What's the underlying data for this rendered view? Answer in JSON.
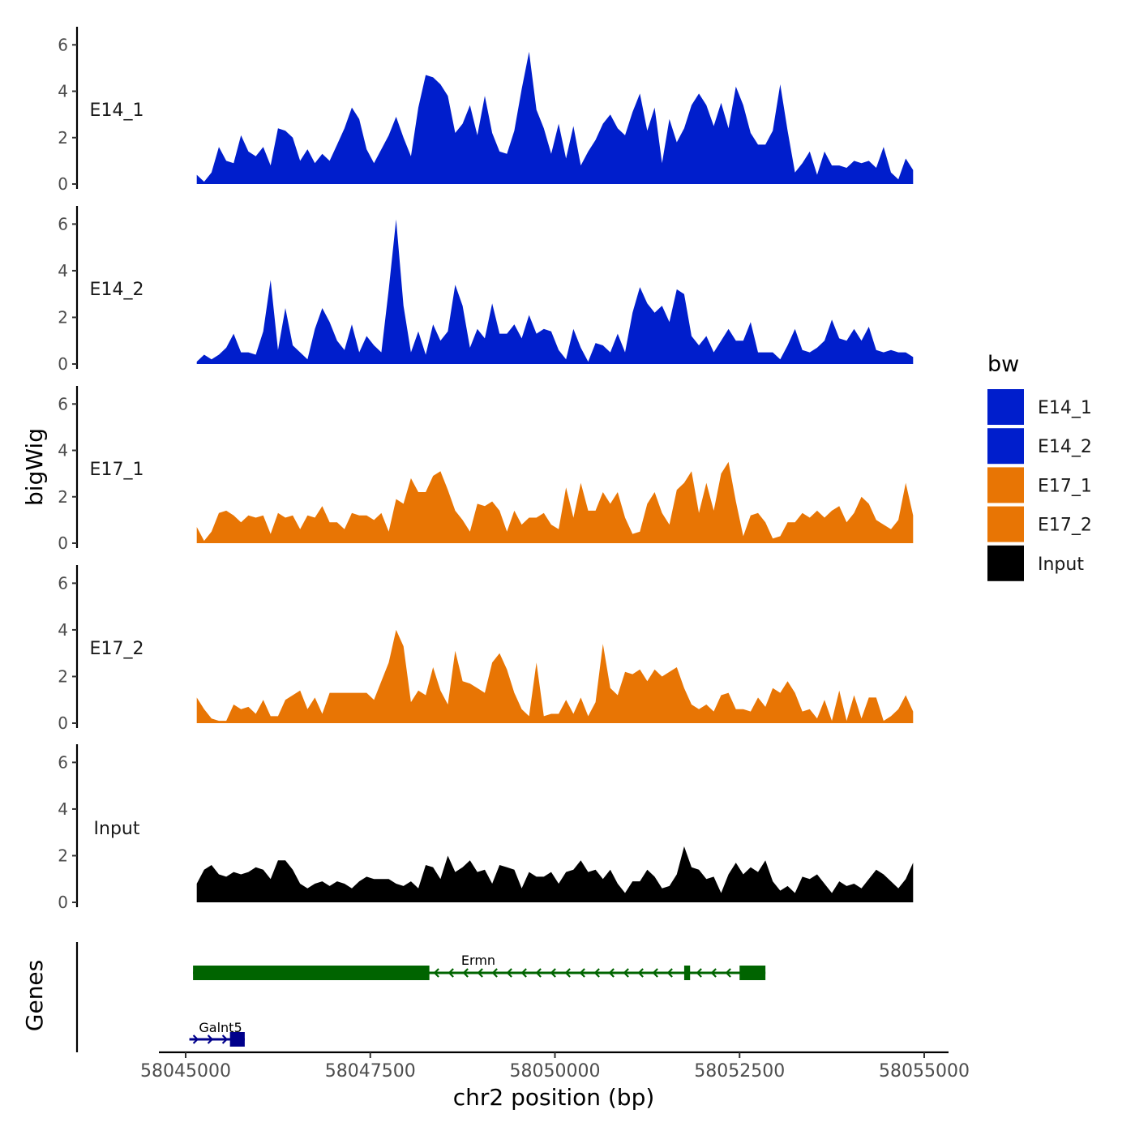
{
  "chart_data": {
    "type": "area",
    "xlabel": "chr2 position (bp)",
    "ylabel": "bigWig",
    "genes_label": "Genes",
    "xlim": [
      58044100,
      58055600
    ],
    "ylim": [
      0,
      6.5
    ],
    "x_ticks": [
      58045000,
      58047500,
      58050000,
      58052500,
      58055000
    ],
    "x_tick_labels": [
      "58045000",
      "58047500",
      "58050000",
      "58052500",
      "58055000"
    ],
    "y_ticks": [
      0,
      2,
      4,
      6
    ],
    "y_tick_labels": [
      "0",
      "2",
      "4",
      "6"
    ],
    "legend": {
      "title": "bw",
      "position": "right",
      "entries": [
        {
          "name": "E14_1",
          "color": "#001ECC"
        },
        {
          "name": "E14_2",
          "color": "#001ECC"
        },
        {
          "name": "E17_1",
          "color": "#E87504"
        },
        {
          "name": "E17_2",
          "color": "#E87504"
        },
        {
          "name": "Input",
          "color": "#000000"
        }
      ]
    },
    "x": [
      58045150,
      58045250,
      58045350,
      58045450,
      58045550,
      58045650,
      58045750,
      58045850,
      58045950,
      58046050,
      58046150,
      58046250,
      58046350,
      58046450,
      58046550,
      58046650,
      58046750,
      58046850,
      58046950,
      58047050,
      58047150,
      58047250,
      58047350,
      58047450,
      58047550,
      58047650,
      58047750,
      58047850,
      58047950,
      58048050,
      58048150,
      58048250,
      58048350,
      58048450,
      58048550,
      58048650,
      58048750,
      58048850,
      58048950,
      58049050,
      58049150,
      58049250,
      58049350,
      58049450,
      58049550,
      58049650,
      58049750,
      58049850,
      58049950,
      58050050,
      58050150,
      58050250,
      58050350,
      58050450,
      58050550,
      58050650,
      58050750,
      58050850,
      58050950,
      58051050,
      58051150,
      58051250,
      58051350,
      58051450,
      58051550,
      58051650,
      58051750,
      58051850,
      58051950,
      58052050,
      58052150,
      58052250,
      58052350,
      58052450,
      58052550,
      58052650,
      58052750,
      58052850,
      58052950,
      58053050,
      58053150,
      58053250,
      58053350,
      58053450,
      58053550,
      58053650,
      58053750,
      58053850,
      58053950,
      58054050,
      58054150,
      58054250,
      58054350,
      58054450,
      58054550,
      58054650,
      58054750,
      58054850
    ],
    "series": [
      {
        "name": "E14_1",
        "color": "#001ECC",
        "values": [
          0.4,
          0.1,
          0.5,
          1.6,
          1.0,
          0.9,
          2.1,
          1.4,
          1.2,
          1.6,
          0.8,
          2.4,
          2.3,
          2.0,
          1.0,
          1.5,
          0.9,
          1.3,
          1.0,
          1.7,
          2.4,
          3.3,
          2.8,
          1.5,
          0.9,
          1.5,
          2.1,
          2.9,
          2.0,
          1.2,
          3.3,
          4.7,
          4.6,
          4.3,
          3.8,
          2.2,
          2.6,
          3.4,
          2.1,
          3.8,
          2.2,
          1.4,
          1.3,
          2.3,
          4.1,
          5.7,
          3.2,
          2.4,
          1.3,
          2.6,
          1.1,
          2.5,
          0.8,
          1.4,
          1.9,
          2.6,
          3.0,
          2.4,
          2.1,
          3.1,
          3.9,
          2.3,
          3.3,
          0.9,
          2.8,
          1.8,
          2.4,
          3.4,
          3.9,
          3.4,
          2.5,
          3.5,
          2.4,
          4.2,
          3.4,
          2.2,
          1.7,
          1.7,
          2.3,
          4.3,
          2.3,
          0.5,
          0.9,
          1.4,
          0.4,
          1.4,
          0.8,
          0.8,
          0.7,
          1.0,
          0.9,
          1.0,
          0.7,
          1.6,
          0.5,
          0.2,
          1.1,
          0.6
        ]
      },
      {
        "name": "E14_2",
        "color": "#001ECC",
        "values": [
          0.1,
          0.4,
          0.2,
          0.4,
          0.7,
          1.3,
          0.5,
          0.5,
          0.4,
          1.4,
          3.6,
          0.6,
          2.4,
          0.8,
          0.5,
          0.2,
          1.5,
          2.4,
          1.8,
          1.0,
          0.6,
          1.7,
          0.5,
          1.2,
          0.8,
          0.5,
          3.2,
          6.2,
          2.5,
          0.5,
          1.4,
          0.4,
          1.7,
          1.0,
          1.4,
          3.4,
          2.5,
          0.7,
          1.5,
          1.1,
          2.6,
          1.3,
          1.3,
          1.7,
          1.1,
          2.1,
          1.3,
          1.5,
          1.4,
          0.6,
          0.2,
          1.5,
          0.7,
          0.1,
          0.9,
          0.8,
          0.5,
          1.3,
          0.5,
          2.2,
          3.3,
          2.6,
          2.2,
          2.5,
          1.8,
          3.2,
          3.0,
          1.2,
          0.8,
          1.2,
          0.5,
          1.0,
          1.5,
          1.0,
          1.0,
          1.8,
          0.5,
          0.5,
          0.5,
          0.2,
          0.8,
          1.5,
          0.6,
          0.5,
          0.7,
          1.0,
          1.9,
          1.1,
          1.0,
          1.5,
          1.0,
          1.6,
          0.6,
          0.5,
          0.6,
          0.5,
          0.5,
          0.3
        ]
      },
      {
        "name": "E17_1",
        "color": "#E87504",
        "values": [
          0.7,
          0.1,
          0.5,
          1.3,
          1.4,
          1.2,
          0.9,
          1.2,
          1.1,
          1.2,
          0.4,
          1.3,
          1.1,
          1.2,
          0.6,
          1.2,
          1.1,
          1.6,
          0.9,
          0.9,
          0.6,
          1.3,
          1.2,
          1.2,
          1.0,
          1.3,
          0.5,
          1.9,
          1.7,
          2.8,
          2.2,
          2.2,
          2.9,
          3.1,
          2.3,
          1.4,
          1.0,
          0.5,
          1.7,
          1.6,
          1.8,
          1.4,
          0.5,
          1.4,
          0.8,
          1.1,
          1.1,
          1.3,
          0.8,
          0.6,
          2.4,
          1.1,
          2.6,
          1.4,
          1.4,
          2.2,
          1.7,
          2.2,
          1.1,
          0.4,
          0.5,
          1.7,
          2.2,
          1.3,
          0.8,
          2.3,
          2.6,
          3.1,
          1.3,
          2.6,
          1.4,
          3.0,
          3.5,
          1.8,
          0.3,
          1.2,
          1.3,
          0.9,
          0.2,
          0.3,
          0.9,
          0.9,
          1.3,
          1.1,
          1.4,
          1.1,
          1.4,
          1.6,
          0.9,
          1.3,
          2.0,
          1.7,
          1.0,
          0.8,
          0.6,
          1.0,
          2.6,
          1.2
        ]
      },
      {
        "name": "E17_2",
        "color": "#E87504",
        "values": [
          1.1,
          0.6,
          0.2,
          0.1,
          0.1,
          0.8,
          0.6,
          0.7,
          0.4,
          1.0,
          0.3,
          0.3,
          1.0,
          1.2,
          1.4,
          0.6,
          1.1,
          0.4,
          1.3,
          1.3,
          1.3,
          1.3,
          1.3,
          1.3,
          1.0,
          1.8,
          2.6,
          4.0,
          3.3,
          0.9,
          1.4,
          1.2,
          2.4,
          1.4,
          0.8,
          3.1,
          1.8,
          1.7,
          1.5,
          1.3,
          2.6,
          3.0,
          2.3,
          1.3,
          0.6,
          0.3,
          2.6,
          0.3,
          0.4,
          0.4,
          1.0,
          0.4,
          1.1,
          0.3,
          0.9,
          3.4,
          1.5,
          1.2,
          2.2,
          2.1,
          2.3,
          1.8,
          2.3,
          2.0,
          2.2,
          2.4,
          1.5,
          0.8,
          0.6,
          0.8,
          0.5,
          1.2,
          1.3,
          0.6,
          0.6,
          0.5,
          1.1,
          0.7,
          1.5,
          1.3,
          1.8,
          1.3,
          0.5,
          0.6,
          0.2,
          1.0,
          0.1,
          1.4,
          0.1,
          1.2,
          0.2,
          1.1,
          1.1,
          0.1,
          0.3,
          0.6,
          1.2,
          0.5
        ]
      },
      {
        "name": "Input",
        "color": "#000000",
        "values": [
          0.8,
          1.4,
          1.6,
          1.2,
          1.1,
          1.3,
          1.2,
          1.3,
          1.5,
          1.4,
          1.0,
          1.8,
          1.8,
          1.4,
          0.8,
          0.6,
          0.8,
          0.9,
          0.7,
          0.9,
          0.8,
          0.6,
          0.9,
          1.1,
          1.0,
          1.0,
          1.0,
          0.8,
          0.7,
          0.9,
          0.6,
          1.6,
          1.5,
          1.0,
          2.0,
          1.3,
          1.5,
          1.8,
          1.3,
          1.4,
          0.8,
          1.6,
          1.5,
          1.4,
          0.6,
          1.3,
          1.1,
          1.1,
          1.3,
          0.8,
          1.3,
          1.4,
          1.8,
          1.3,
          1.4,
          1.0,
          1.4,
          0.8,
          0.4,
          0.9,
          0.9,
          1.4,
          1.1,
          0.6,
          0.7,
          1.2,
          2.4,
          1.5,
          1.4,
          1.0,
          1.1,
          0.4,
          1.2,
          1.7,
          1.2,
          1.5,
          1.3,
          1.8,
          0.9,
          0.5,
          0.7,
          0.4,
          1.1,
          1.0,
          1.2,
          0.8,
          0.4,
          0.9,
          0.7,
          0.8,
          0.6,
          1.0,
          1.4,
          1.2,
          0.9,
          0.6,
          1.0,
          1.7
        ]
      }
    ],
    "genes": [
      {
        "name": "Ermn",
        "strand": "-",
        "color": "#006400",
        "start": 58045100,
        "end": 58052850,
        "exons": [
          [
            58045100,
            58048300
          ],
          [
            58051750,
            58051830
          ],
          [
            58052500,
            58052850
          ]
        ]
      },
      {
        "name": "Galnt5",
        "strand": "+",
        "color": "#00008B",
        "start": 58045050,
        "end": 58045800,
        "exons": [
          [
            58045600,
            58045800
          ]
        ]
      }
    ]
  }
}
